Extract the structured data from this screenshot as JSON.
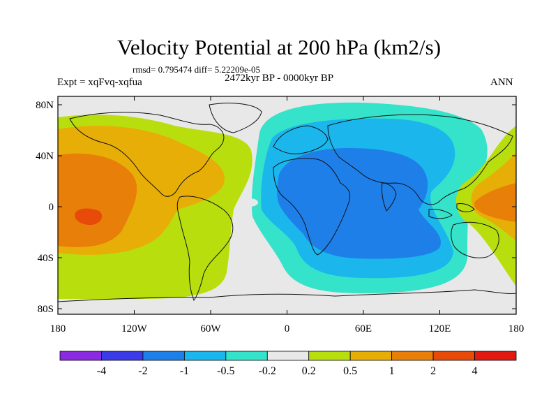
{
  "title": "Velocity Potential at 200 hPa (km2/s)",
  "stats": "rmsd= 0.795474 diff= 5.22209e-05",
  "experiment": "Expt = xqFvq-xqfua",
  "period": "2472kyr BP - 0000kyr BP",
  "season": "ANN",
  "lat_labels": [
    "80N",
    "40N",
    "0",
    "40S",
    "80S"
  ],
  "lon_labels": [
    "180",
    "120W",
    "60W",
    "0",
    "60E",
    "120E",
    "180"
  ],
  "colorbar": {
    "colors": [
      "#8a2be2",
      "#3a3ae6",
      "#1f7fe8",
      "#1ab6ec",
      "#34e3c9",
      "#e8e8e8",
      "#b8de0e",
      "#e8ae08",
      "#e87f08",
      "#e84a0a",
      "#e01a10"
    ],
    "labels": [
      "-4",
      "-2",
      "-1",
      "-0.5",
      "-0.2",
      "0.2",
      "0.5",
      "1",
      "2",
      "4"
    ]
  },
  "field_colors": {
    "neutral": "#e8e8e8",
    "pos_02": "#b8de0e",
    "pos_05": "#e8ae08",
    "pos_1": "#e87f08",
    "pos_2": "#e84a0a",
    "neg_02": "#34e3c9",
    "neg_05": "#1ab6ec",
    "neg_1": "#1f7fe8"
  }
}
